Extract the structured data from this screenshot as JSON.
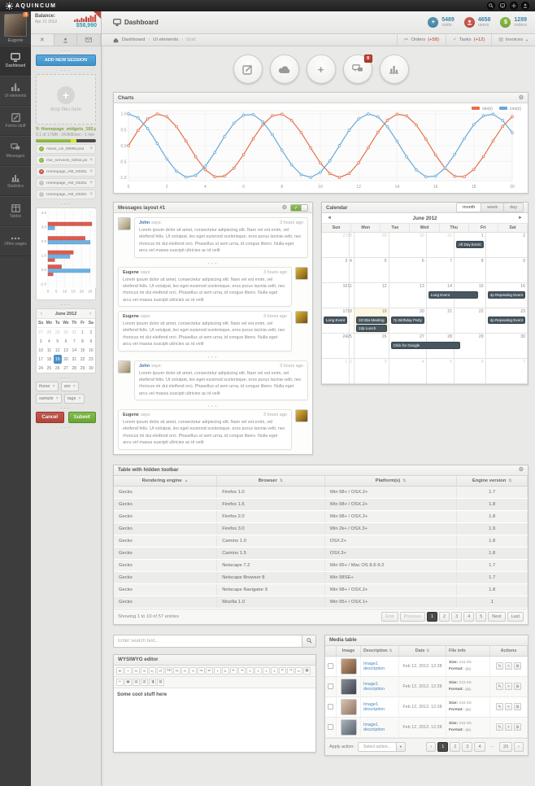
{
  "topbar": {
    "logo": "AQUINCUM",
    "icons": [
      "search",
      "display",
      "settings",
      "user"
    ]
  },
  "header": {
    "title": "Dashboard",
    "stats": [
      {
        "value": "5489",
        "label": "visits",
        "color": "#5291b4",
        "icon": "plus"
      },
      {
        "value": "4658",
        "label": "users",
        "color": "#c9574d",
        "icon": "user"
      },
      {
        "value": "1289",
        "label": "orders",
        "color": "#84b541",
        "icon": "dollar"
      }
    ],
    "breadcrumb": [
      {
        "label": "Dashboard"
      },
      {
        "label": "UI elements"
      },
      {
        "label": "Grid",
        "muted": true
      }
    ],
    "quicklinks": [
      {
        "label": "Orders",
        "badge": "(+58)",
        "icon": "list"
      },
      {
        "label": "Tasks",
        "badge": "(+12)",
        "icon": "check"
      },
      {
        "label": "Invoices",
        "badge": "",
        "icon": "doc",
        "caret": true
      }
    ]
  },
  "sidebar": {
    "user": "Eugene",
    "badge": "3",
    "items": [
      {
        "label": "Dashboard",
        "active": true
      },
      {
        "label": "UI elements"
      },
      {
        "label": "Forms stuff"
      },
      {
        "label": "Messages"
      },
      {
        "label": "Statistics"
      },
      {
        "label": "Tables"
      },
      {
        "label": "Other pages"
      }
    ]
  },
  "tools": {
    "balance": {
      "label": "Balance:",
      "date": "Apr 21 2012",
      "amount": "$58,990",
      "spark": [
        2,
        3,
        2,
        4,
        3,
        5,
        4,
        6,
        5,
        7
      ]
    },
    "tabs": [
      "close",
      "user",
      "mail"
    ],
    "add_button": "ADD NEW SESSION",
    "dropzone_label": "drop files here",
    "upload": {
      "name": "Homepage_widgets_102.psd",
      "progress_text": "9.1 of 17MB - 243KB/sec - 1 min",
      "percent_green": 58,
      "percent_yellow": 9
    },
    "files": [
      {
        "name": "About_Us_08956.psd",
        "status": "done"
      },
      {
        "name": "Our_services_02811.psd",
        "status": "done"
      },
      {
        "name": "Homepage_AM_032811.psd",
        "status": "error"
      },
      {
        "name": "Homepage_AM_032811.psd",
        "status": "pending"
      },
      {
        "name": "Homepage_AM_032811.psd",
        "status": "pending"
      }
    ],
    "bar_chart": {
      "type": "bar",
      "y_ticks": [
        "4.0",
        "3.0",
        "2.0",
        "1.0",
        "0.0",
        "-1.0"
      ],
      "x_ticks": [
        0,
        5,
        10,
        15,
        20,
        25
      ],
      "x_max": 27,
      "colors": {
        "red": "#dd5b4d",
        "blue": "#6cb2e3"
      },
      "groups": [
        {
          "red": 26,
          "blue": 4
        },
        {
          "red": 22,
          "blue": 25
        },
        {
          "red": 15,
          "blue": 13,
          "red2": 4
        },
        {
          "red": 8,
          "blue": 25,
          "red2": 3
        }
      ]
    },
    "mini_calendar": {
      "title": "June 2012",
      "prev": "‹",
      "next": "›",
      "dows": [
        "Su",
        "Mo",
        "Tu",
        "We",
        "Th",
        "Fr",
        "Sa"
      ],
      "weeks": [
        [
          27,
          28,
          29,
          30,
          31,
          1,
          2
        ],
        [
          3,
          4,
          5,
          6,
          7,
          8,
          9
        ],
        [
          10,
          11,
          12,
          13,
          14,
          15,
          16
        ],
        [
          17,
          18,
          19,
          20,
          21,
          22,
          23
        ],
        [
          24,
          25,
          26,
          27,
          28,
          29,
          30
        ]
      ],
      "selected": 19
    },
    "tags": [
      "these",
      "are",
      "sample",
      "tags"
    ],
    "cancel_label": "Cancel",
    "submit_label": "Submit"
  },
  "circle_buttons": [
    {
      "name": "compose",
      "badge": ""
    },
    {
      "name": "cloud",
      "badge": ""
    },
    {
      "name": "add",
      "badge": ""
    },
    {
      "name": "chat",
      "badge": "8"
    },
    {
      "name": "stats",
      "badge": ""
    }
  ],
  "charts_panel": {
    "title": "Charts",
    "chart_data": {
      "type": "line",
      "x_min": 0,
      "x_max": 20,
      "x_step": 0.5,
      "x_ticks": [
        0,
        2,
        4,
        6,
        8,
        10,
        12,
        14,
        16,
        18,
        20
      ],
      "y_ticks": [
        1.0,
        0.5,
        0.0,
        -0.5,
        -1.0
      ],
      "ylim": [
        -1.1,
        1.1
      ],
      "grid": true,
      "legend_position": "top-right",
      "series": [
        {
          "name": "sin(x)",
          "fn": "sin",
          "color": "#e2714b"
        },
        {
          "name": "cos(x)",
          "fn": "cos",
          "color": "#69a8d8"
        }
      ]
    }
  },
  "messages_panel": {
    "title": "Messages layout #1",
    "says_label": "says:",
    "messages": [
      {
        "author": "John",
        "side": "left",
        "time": "3 hours ago",
        "text": "Lorem ipsum dolor sit amet, consectetur adipiscing elit. Nam vel est enim, vel eleifend felis. Ut volutpat, leo eget euismod scelerisque, eros purus lacinia velit, nec rhoncus mi dui eleifend orci. Phasellus ut sem urna, id congue libero. Nulla eget arcu vel massa suscipit ultricies ac id velit",
        "divider_after": true
      },
      {
        "author": "Eugene",
        "side": "right",
        "time": "3 hours ago",
        "text": "Lorem ipsum dolor sit amet, consectetur adipiscing elit. Nam vel est enim, vel eleifend felis. Ut volutpat, leo eget euismod scelerisque, eros purus lacinia velit, nec rhoncus mi dui eleifend orci. Phasellus ut sem urna, id congue libero. Nulla eget arcu vel massa suscipit ultricies ac id velit"
      },
      {
        "author": "Eugene",
        "side": "right",
        "time": "3 hours ago",
        "text": "Lorem ipsum dolor sit amet, consectetur adipiscing elit. Nam vel est enim, vel eleifend felis. Ut volutpat, leo eget euismod scelerisque, eros purus lacinia velit, nec rhoncus mi dui eleifend orci. Phasellus ut sem urna, id congue libero. Nulla eget arcu vel massa suscipit ultricies ac id velit",
        "divider_after": true
      },
      {
        "author": "John",
        "side": "left",
        "time": "3 hours ago",
        "text": "Lorem ipsum dolor sit amet, consectetur adipiscing elit. Nam vel est enim, vel eleifend felis. Ut volutpat, leo eget euismod scelerisque, eros purus lacinia velit, nec rhoncus mi dui eleifend orci. Phasellus ut sem urna, id congue libero. Nulla eget arcu vel massa suscipit ultricies ac id velit",
        "divider_after": true
      },
      {
        "author": "Eugene",
        "side": "right",
        "time": "3 hours ago",
        "text": "Lorem ipsum dolor sit amet, consectetur adipiscing elit. Nam vel est enim, vel eleifend felis. Ut volutpat, leo eget euismod scelerisque, eros purus lacinia velit, nec rhoncus mi dui eleifend orci. Phasellus ut sem urna, id congue libero. Nulla eget arcu vel massa suscipit ultricies ac id velit"
      }
    ]
  },
  "calendar_panel": {
    "title": "Calendar",
    "views": [
      "month",
      "week",
      "day"
    ],
    "active_view": "month",
    "month_title": "June 2012",
    "prev": "◄",
    "next": "►",
    "dows": [
      "Sun",
      "Mon",
      "Tue",
      "Wed",
      "Thu",
      "Fri",
      "Sat"
    ],
    "event_color": "#47565f",
    "weeks": [
      [
        {
          "d": 27,
          "m": 1
        },
        {
          "d": 28,
          "m": 1
        },
        {
          "d": 29,
          "m": 1
        },
        {
          "d": 30,
          "m": 1
        },
        {
          "d": 31,
          "m": 1
        },
        {
          "d": 1,
          "ev": [
            {
              "label": "All Day Event"
            }
          ]
        },
        {
          "d": 2
        }
      ],
      [
        {
          "d": 3
        },
        {
          "d": 4
        },
        {
          "d": 5
        },
        {
          "d": 6
        },
        {
          "d": 7
        },
        {
          "d": 8
        },
        {
          "d": 9
        }
      ],
      [
        {
          "d": 10
        },
        {
          "d": 11
        },
        {
          "d": 12
        },
        {
          "d": 13
        },
        {
          "d": 14,
          "ev": [
            {
              "label": "Long Event",
              "span": 2
            }
          ]
        },
        {
          "d": 15
        },
        {
          "d": 16,
          "ev": [
            {
              "label": "4p Repeating Event"
            }
          ]
        }
      ],
      [
        {
          "d": 17,
          "ev": [
            {
              "label": "Long Event"
            }
          ]
        },
        {
          "d": 18
        },
        {
          "d": 19,
          "today": 1,
          "ev": [
            {
              "label": "10:30a Meeting"
            },
            {
              "label": "12p Lunch"
            }
          ]
        },
        {
          "d": 20,
          "ev": [
            {
              "label": "7p Birthday Party"
            }
          ]
        },
        {
          "d": 21
        },
        {
          "d": 22
        },
        {
          "d": 23,
          "ev": [
            {
              "label": "4p Repeating Event"
            }
          ]
        }
      ],
      [
        {
          "d": 24
        },
        {
          "d": 25
        },
        {
          "d": 26
        },
        {
          "d": 27,
          "ev": [
            {
              "label": "Click for Google",
              "span": 2
            }
          ]
        },
        {
          "d": 28
        },
        {
          "d": 29
        },
        {
          "d": 30
        }
      ],
      [
        {
          "d": 1,
          "m": 1
        },
        {
          "d": 2,
          "m": 1
        },
        {
          "d": 3,
          "m": 1
        },
        {
          "d": 4,
          "m": 1
        },
        {
          "d": 5,
          "m": 1
        },
        {
          "d": 6,
          "m": 1
        },
        {
          "d": 7,
          "m": 1
        }
      ]
    ]
  },
  "table_panel": {
    "title": "Table with hidden toolbar",
    "columns": [
      {
        "label": "Rendering engine",
        "sort": "asc"
      },
      {
        "label": "Browser",
        "sort": "both"
      },
      {
        "label": "Platform(s)",
        "sort": "both"
      },
      {
        "label": "Engine version",
        "sort": "both"
      }
    ],
    "rows": [
      [
        "Gecko",
        "Firefox 1.0",
        "Win 98+ / OSX.2+",
        "1.7"
      ],
      [
        "Gecko",
        "Firefox 1.5",
        "Win 98+ / OSX.2+",
        "1.8"
      ],
      [
        "Gecko",
        "Firefox 2.0",
        "Win 98+ / OSX.2+",
        "1.8"
      ],
      [
        "Gecko",
        "Firefox 3.0",
        "Win 2k+ / OSX.3+",
        "1.9"
      ],
      [
        "Gecko",
        "Camino 1.0",
        "OSX.2+",
        "1.8"
      ],
      [
        "Gecko",
        "Camino 1.5",
        "OSX.3+",
        "1.8"
      ],
      [
        "Gecko",
        "Netscape 7.2",
        "Win 95+ / Mac OS 8.6-9.2",
        "1.7"
      ],
      [
        "Gecko",
        "Netscape Browser 8",
        "Win 98SE+",
        "1.7"
      ],
      [
        "Gecko",
        "Netscape Navigator 9",
        "Win 98+ / OSX.2+",
        "1.8"
      ],
      [
        "Gecko",
        "Mozilla 1.0",
        "Win 95+ / OSX.1+",
        "1"
      ]
    ],
    "footer": {
      "info": "Showing 1 to 10 of 57 entries",
      "pages": [
        {
          "label": "First",
          "disabled": 1
        },
        {
          "label": "Previous",
          "disabled": 1
        },
        {
          "label": "1",
          "active": 1
        },
        {
          "label": "2"
        },
        {
          "label": "3"
        },
        {
          "label": "4"
        },
        {
          "label": "5"
        },
        {
          "label": "Next"
        },
        {
          "label": "Last"
        }
      ]
    }
  },
  "search": {
    "placeholder": "Enter search text..."
  },
  "editor_panel": {
    "title": "WYSIWYG editor",
    "content": "Some cool stuff here",
    "toolbar_row1": [
      "B",
      "I",
      "U",
      "S",
      "x₂",
      "x²",
      "T▾",
      "Tt",
      "A",
      "A",
      "≔",
      "≕",
      "•",
      "1.",
      "⇤",
      "⇥",
      "≡",
      "≡",
      "≡",
      "≡",
      "↶",
      "↷",
      "∞",
      "▦"
    ],
    "toolbar_row2": [
      "✂",
      "▣",
      "▤",
      "▥",
      "◨",
      "▧"
    ]
  },
  "media_panel": {
    "title": "Media table",
    "columns": [
      "",
      "Image",
      "Description",
      "Date",
      "File info",
      "Actions"
    ],
    "rows": [
      {
        "description": "Image1 description",
        "date": "Feb 12, 2012. 12:28",
        "size_label": "Size:",
        "size": "215 Kb",
        "format_label": "Format:",
        "format": ".jpg"
      },
      {
        "description": "Image1 description",
        "date": "Feb 12, 2012. 12:28",
        "size_label": "Size:",
        "size": "215 Kb",
        "format_label": "Format:",
        "format": ".jpg"
      },
      {
        "description": "Image1 description",
        "date": "Feb 12, 2012. 12:28",
        "size_label": "Size:",
        "size": "215 Kb",
        "format_label": "Format:",
        "format": ".jpg"
      },
      {
        "description": "Image1 description",
        "date": "Feb 12, 2012. 12:28",
        "size_label": "Size:",
        "size": "215 Kb",
        "format_label": "Format:",
        "format": ".jpg"
      }
    ],
    "footer": {
      "apply_label": "Apply action:",
      "select_value": "Select action...",
      "pages": [
        {
          "label": "‹"
        },
        {
          "label": "1",
          "active": 1
        },
        {
          "label": "2"
        },
        {
          "label": "3"
        },
        {
          "label": "4"
        },
        {
          "label": "…",
          "gap": 1
        },
        {
          "label": "20"
        },
        {
          "label": "›"
        }
      ]
    }
  }
}
